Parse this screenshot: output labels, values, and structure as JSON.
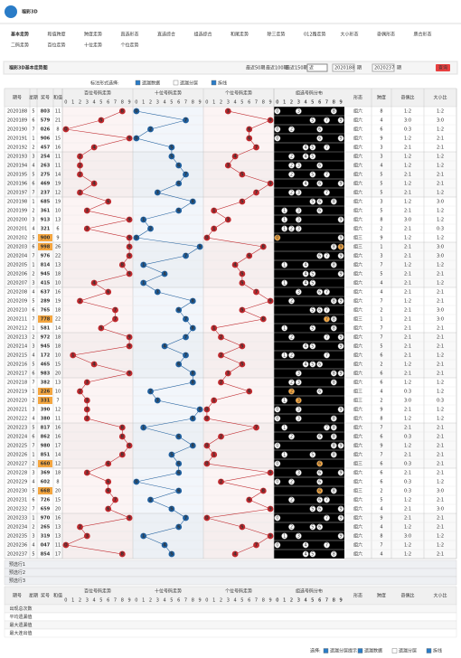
{
  "header": {
    "logo": "福彩3D",
    "nav": [
      "基本走势",
      "和值跨度",
      "跨度走势",
      "直选形态",
      "直选综合",
      "组选综合",
      "和尾走势",
      "除三走势",
      "012路走势",
      "大小形态",
      "奇偶形态",
      "质合形态",
      "二码走势",
      "百位走势",
      "十位走势",
      "个位走势"
    ]
  },
  "title": "福彩3D基本走势图",
  "toolbar": {
    "recent": [
      "最近50期",
      "最近100期",
      "最近150期"
    ],
    "select": "近",
    "from": "2020188",
    "fromUnit": "期",
    "to": "2020237",
    "toUnit": "期",
    "query": "查询"
  },
  "options": {
    "label": "标注形式选择:",
    "items": [
      "遗漏数据",
      "遗漏分层",
      "拆线"
    ]
  },
  "table": {
    "headers": {
      "issue": "期号",
      "week": "星期",
      "number": "奖号",
      "sum": "和值",
      "groups": [
        "百位号码走势",
        "十位号码走势",
        "个位号码走势",
        "组选号码分布"
      ],
      "extra": [
        "形态",
        "跨度",
        "奇偶比",
        "大小比"
      ]
    },
    "digits": [
      0,
      1,
      2,
      3,
      4,
      5,
      6,
      7,
      8,
      9
    ],
    "rows": [
      [
        "2020188",
        5,
        "803",
        11,
        "组六",
        8,
        "1:2",
        "1:2"
      ],
      [
        "2020189",
        6,
        "579",
        21,
        "组六",
        4,
        "3:0",
        "3:0"
      ],
      [
        "2020190",
        7,
        "026",
        8,
        "组六",
        6,
        "0:3",
        "1:2"
      ],
      [
        "2020191",
        1,
        "906",
        15,
        "组六",
        9,
        "1:2",
        "2:1"
      ],
      [
        "2020192",
        2,
        "457",
        16,
        "组六",
        3,
        "2:1",
        "2:1"
      ],
      [
        "2020193",
        3,
        "254",
        11,
        "组六",
        3,
        "1:2",
        "1:2"
      ],
      [
        "2020194",
        4,
        "263",
        11,
        "组六",
        4,
        "1:2",
        "1:2"
      ],
      [
        "2020195",
        5,
        "275",
        14,
        "组六",
        5,
        "2:1",
        "2:1"
      ],
      [
        "2020196",
        6,
        "469",
        19,
        "组六",
        5,
        "1:2",
        "2:1"
      ],
      [
        "2020197",
        7,
        "237",
        12,
        "组六",
        5,
        "2:1",
        "1:2"
      ],
      [
        "2020198",
        1,
        "685",
        19,
        "组六",
        3,
        "1:2",
        "3:0"
      ],
      [
        "2020199",
        2,
        "361",
        10,
        "组六",
        5,
        "2:1",
        "1:2"
      ],
      [
        "2020200",
        3,
        "913",
        13,
        "组六",
        8,
        "3:0",
        "1:2"
      ],
      [
        "2020201",
        4,
        "321",
        6,
        "组六",
        2,
        "2:1",
        "0:3"
      ],
      [
        "2020202",
        5,
        "900",
        9,
        "组三",
        9,
        "1:2",
        "1:2"
      ],
      [
        "2020203",
        6,
        "998",
        26,
        "组三",
        1,
        "2:1",
        "3:0"
      ],
      [
        "2020204",
        7,
        "976",
        22,
        "组六",
        3,
        "2:1",
        "3:0"
      ],
      [
        "2020205",
        1,
        "814",
        13,
        "组六",
        7,
        "1:2",
        "1:2"
      ],
      [
        "2020206",
        2,
        "945",
        18,
        "组六",
        5,
        "2:1",
        "2:1"
      ],
      [
        "2020207",
        3,
        "415",
        10,
        "组六",
        4,
        "2:1",
        "1:2"
      ],
      [
        "2020208",
        4,
        "637",
        16,
        "组六",
        4,
        "2:1",
        "2:1"
      ],
      [
        "2020209",
        5,
        "289",
        19,
        "组六",
        7,
        "1:2",
        "2:1"
      ],
      [
        "2020210",
        6,
        "765",
        18,
        "组六",
        2,
        "2:1",
        "3:0"
      ],
      [
        "2020211",
        7,
        "778",
        22,
        "组三",
        1,
        "2:1",
        "3:0"
      ],
      [
        "2020212",
        1,
        "581",
        14,
        "组六",
        7,
        "2:1",
        "2:1"
      ],
      [
        "2020213",
        2,
        "972",
        18,
        "组六",
        7,
        "2:1",
        "2:1"
      ],
      [
        "2020214",
        3,
        "945",
        18,
        "组六",
        5,
        "2:1",
        "2:1"
      ],
      [
        "2020215",
        4,
        "172",
        10,
        "组六",
        6,
        "2:1",
        "1:2"
      ],
      [
        "2020216",
        5,
        "465",
        15,
        "组六",
        2,
        "1:2",
        "2:1"
      ],
      [
        "2020217",
        6,
        "983",
        20,
        "组六",
        6,
        "2:1",
        "2:1"
      ],
      [
        "2020218",
        7,
        "382",
        13,
        "组六",
        6,
        "1:2",
        "1:2"
      ],
      [
        "2020219",
        1,
        "226",
        10,
        "组三",
        4,
        "0:3",
        "1:2"
      ],
      [
        "2020220",
        2,
        "331",
        7,
        "组三",
        2,
        "3:0",
        "0:3"
      ],
      [
        "2020221",
        3,
        "390",
        12,
        "组六",
        9,
        "2:1",
        "1:2"
      ],
      [
        "2020222",
        4,
        "380",
        11,
        "组六",
        8,
        "1:2",
        "1:2"
      ],
      [
        "2020223",
        5,
        "817",
        16,
        "组六",
        7,
        "2:1",
        "2:1"
      ],
      [
        "2020224",
        6,
        "862",
        16,
        "组六",
        6,
        "0:3",
        "2:1"
      ],
      [
        "2020225",
        7,
        "980",
        17,
        "组六",
        9,
        "1:2",
        "2:1"
      ],
      [
        "2020226",
        1,
        "851",
        14,
        "组六",
        7,
        "2:1",
        "2:1"
      ],
      [
        "2020227",
        2,
        "660",
        12,
        "组三",
        6,
        "0:3",
        "2:1"
      ],
      [
        "2020228",
        3,
        "369",
        18,
        "组六",
        6,
        "2:1",
        "2:1"
      ],
      [
        "2020229",
        4,
        "602",
        8,
        "组六",
        6,
        "0:3",
        "1:2"
      ],
      [
        "2020230",
        5,
        "668",
        20,
        "组三",
        2,
        "0:3",
        "3:0"
      ],
      [
        "2020231",
        6,
        "726",
        15,
        "组六",
        5,
        "1:2",
        "2:1"
      ],
      [
        "2020232",
        7,
        "659",
        20,
        "组六",
        4,
        "2:1",
        "3:0"
      ],
      [
        "2020233",
        1,
        "970",
        16,
        "组六",
        9,
        "2:1",
        "2:1"
      ],
      [
        "2020234",
        2,
        "265",
        13,
        "组六",
        4,
        "1:2",
        "2:1"
      ],
      [
        "2020235",
        3,
        "319",
        13,
        "组六",
        8,
        "3:0",
        "1:2"
      ],
      [
        "2020236",
        4,
        "047",
        11,
        "组六",
        7,
        "1:2",
        "1:2"
      ],
      [
        "2020237",
        5,
        "854",
        17,
        "组六",
        4,
        "1:2",
        "2:1"
      ]
    ],
    "preselect": [
      "预选行1",
      "预选行2",
      "预选行3"
    ],
    "stats": [
      "出现总次数",
      "平均遗漏值",
      "最大遗漏值",
      "最大连出值"
    ]
  },
  "footer": {
    "label": "选择:",
    "items": [
      "遗漏分层提示",
      "遗漏数据",
      "遗漏分层",
      "拆线"
    ]
  }
}
